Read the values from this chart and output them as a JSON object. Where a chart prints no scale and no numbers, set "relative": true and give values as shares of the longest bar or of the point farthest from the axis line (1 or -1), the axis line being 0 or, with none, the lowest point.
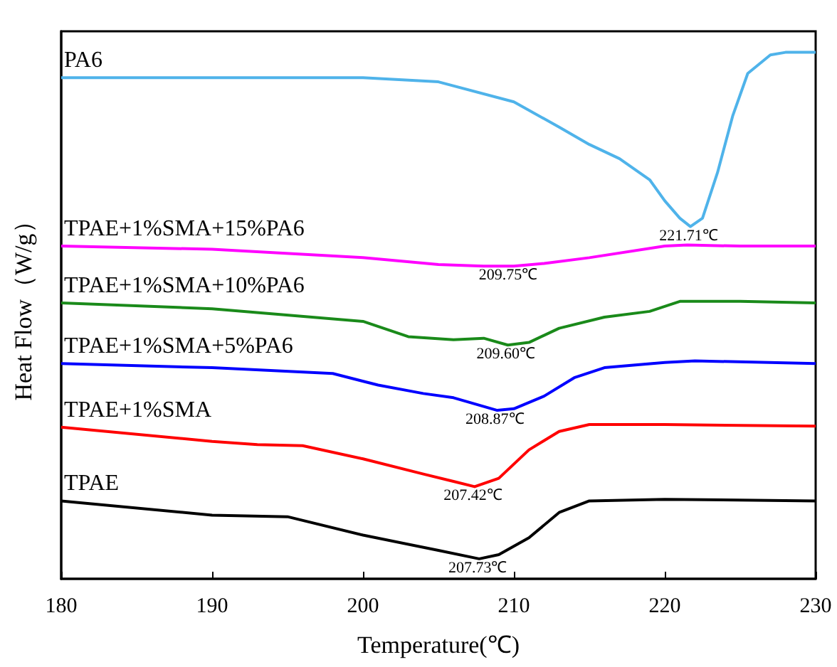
{
  "chart_data": {
    "type": "line",
    "xlabel": "Temperature(℃)",
    "ylabel": "Heat Flow（W/g）",
    "relative": true,
    "xlim": [
      180,
      230
    ],
    "xticks": [
      180,
      190,
      200,
      210,
      220,
      230
    ],
    "tick_labels": "x",
    "grid": false,
    "legend": false,
    "marker": "none",
    "line_style": "solid",
    "series": [
      {
        "name": "PA6",
        "color": "#4fb3ea",
        "x": [
          180,
          190,
          200,
          205,
          210,
          213,
          215,
          217,
          219,
          220,
          221,
          221.7,
          222.5,
          223.5,
          224.5,
          225.5,
          227,
          228,
          230
        ],
        "values": [
          0.952,
          0.952,
          0.952,
          0.944,
          0.906,
          0.858,
          0.825,
          0.798,
          0.758,
          0.718,
          0.685,
          0.669,
          0.685,
          0.772,
          0.879,
          0.96,
          0.995,
          1,
          1
        ]
      },
      {
        "name": "TPAE+1%SMA+15%PA6",
        "color": "#ff00ff",
        "x": [
          180,
          190,
          200,
          205,
          208,
          210,
          212,
          215,
          220,
          221.5,
          225,
          230
        ],
        "values": [
          0.632,
          0.626,
          0.61,
          0.597,
          0.594,
          0.594,
          0.599,
          0.61,
          0.632,
          0.634,
          0.632,
          0.632
        ]
      },
      {
        "name": "TPAE+1%SMA+10%PA6",
        "color": "#1a8a1a",
        "x": [
          180,
          190,
          200,
          203,
          206,
          208,
          209.6,
          211,
          213,
          216,
          219,
          221,
          225,
          230
        ],
        "values": [
          0.524,
          0.513,
          0.489,
          0.46,
          0.454,
          0.457,
          0.444,
          0.449,
          0.476,
          0.497,
          0.508,
          0.527,
          0.527,
          0.524
        ]
      },
      {
        "name": "TPAE+1%SMA+5%PA6",
        "color": "#0000ff",
        "x": [
          180,
          190,
          198,
          201,
          204,
          206,
          208.9,
          210,
          212,
          214,
          216,
          220,
          222,
          230
        ],
        "values": [
          0.409,
          0.401,
          0.39,
          0.368,
          0.352,
          0.344,
          0.32,
          0.323,
          0.347,
          0.382,
          0.401,
          0.411,
          0.414,
          0.409
        ]
      },
      {
        "name": "TPAE+1%SMA",
        "color": "#ff0000",
        "x": [
          180,
          190,
          193,
          196,
          200,
          204,
          206,
          207.4,
          209,
          211,
          213,
          215,
          220,
          230
        ],
        "values": [
          0.288,
          0.261,
          0.255,
          0.253,
          0.228,
          0.199,
          0.185,
          0.175,
          0.191,
          0.245,
          0.28,
          0.293,
          0.293,
          0.29
        ]
      },
      {
        "name": "TPAE",
        "color": "#000000",
        "x": [
          180,
          190,
          195,
          200,
          205,
          207.7,
          209,
          211,
          213,
          215,
          220,
          230
        ],
        "values": [
          0.148,
          0.121,
          0.118,
          0.083,
          0.054,
          0.038,
          0.046,
          0.078,
          0.126,
          0.148,
          0.151,
          0.148
        ]
      }
    ],
    "annotations": [
      {
        "text": "221.71℃",
        "x": 221.71,
        "y": 0.669
      },
      {
        "text": "209.75℃",
        "x": 209.75,
        "y": 0.594
      },
      {
        "text": "209.60℃",
        "x": 209.6,
        "y": 0.444
      },
      {
        "text": "208.87℃",
        "x": 208.87,
        "y": 0.32
      },
      {
        "text": "207.42℃",
        "x": 207.42,
        "y": 0.175
      },
      {
        "text": "207.73℃",
        "x": 207.73,
        "y": 0.038
      }
    ]
  }
}
